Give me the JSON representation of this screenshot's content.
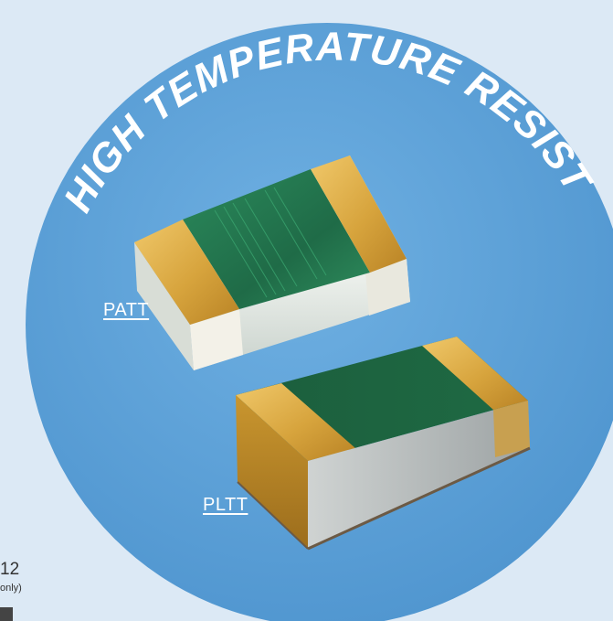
{
  "banner": {
    "arc_title": "HIGH TEMPERATURE RESISTORS"
  },
  "products": [
    {
      "name": "PATT",
      "link": true
    },
    {
      "name": "PLTT",
      "link": true
    }
  ],
  "edge_fragment": {
    "number": "12",
    "note": "only)"
  },
  "colors": {
    "page_background": "#dce9f5",
    "circle": "#5ea3d8",
    "label_text": "#ffffff",
    "resistor_green": "#1f6b47",
    "terminal_gold": "#d9a93f",
    "ceramic_body": "#e6ebe7"
  },
  "icons": [
    "patt-resistor-chip",
    "pltt-resistor-chip"
  ]
}
